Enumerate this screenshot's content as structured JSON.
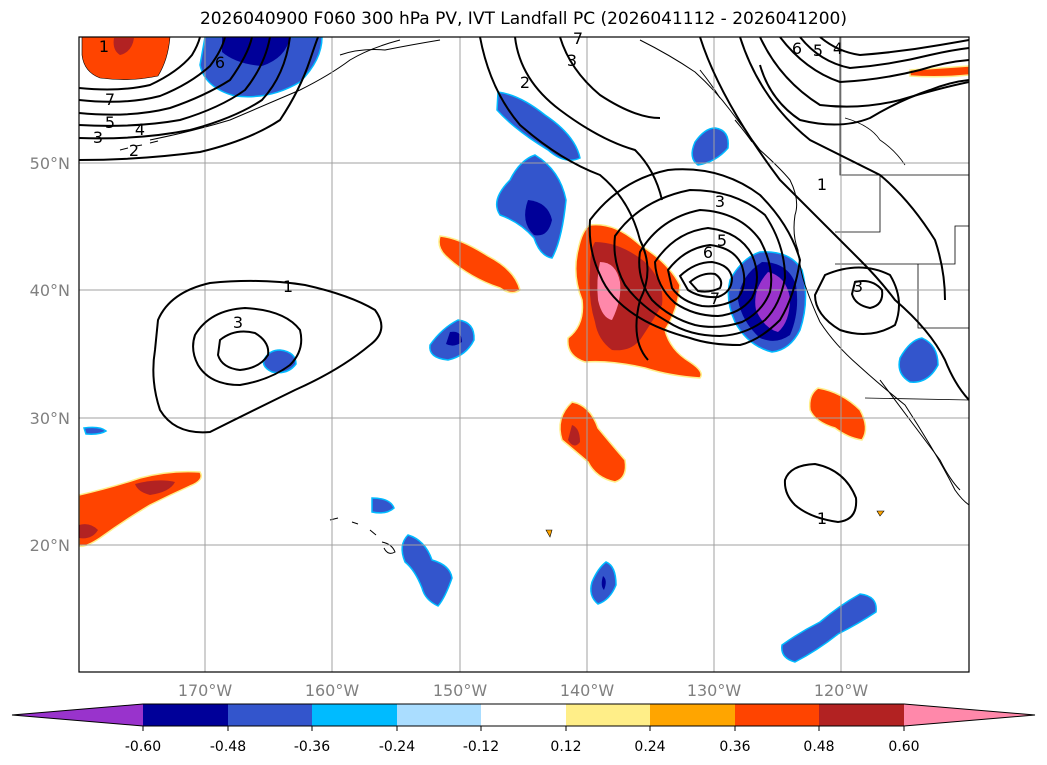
{
  "title": "2026040900 F060 300 hPa PV, IVT Landfall PC (2026041112 - 2026041200)",
  "lat_ticks": [
    "50°N",
    "40°N",
    "30°N",
    "20°N"
  ],
  "lon_ticks": [
    "170°W",
    "160°W",
    "150°W",
    "140°W",
    "130°W",
    "120°W"
  ],
  "contour_labels": [
    "1",
    "3",
    "1",
    "3",
    "5",
    "6",
    "7",
    "1",
    "2",
    "3",
    "6",
    "5",
    "4",
    "7",
    "5",
    "4",
    "3",
    "2",
    "6",
    "7",
    "3",
    "1"
  ],
  "colorbar": {
    "ticks": [
      "-0.60",
      "-0.48",
      "-0.36",
      "-0.24",
      "-0.12",
      "0.12",
      "0.24",
      "0.36",
      "0.48",
      "0.60"
    ],
    "colors": [
      "#9933cc",
      "#000099",
      "#3355cc",
      "#00bbff",
      "#aaddff",
      "#ffffff",
      "#ffee88",
      "#ffa500",
      "#ff4400",
      "#b22222",
      "#ff88aa"
    ]
  }
}
